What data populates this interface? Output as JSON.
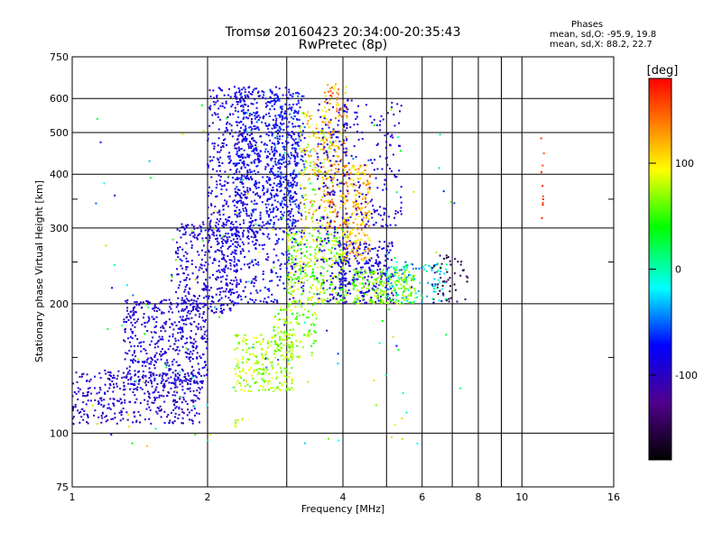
{
  "chart_data": {
    "type": "scatter",
    "title": "Tromsø 20160423 20:34:00-20:35:43",
    "subtitle": "RwPretec (8p)",
    "xlabel": "Frequency [MHz]",
    "ylabel": "Stationary phase Virtual Height [km]",
    "x_scale": "log",
    "y_scale": "log",
    "xlim": [
      1,
      16
    ],
    "ylim": [
      75,
      750
    ],
    "x_ticks": [
      1,
      2,
      4,
      6,
      8,
      10,
      16
    ],
    "x_tick_labels": [
      "1",
      "2",
      "4",
      "6",
      "8",
      "10",
      "16"
    ],
    "y_ticks": [
      75,
      100,
      200,
      300,
      400,
      500,
      600,
      750
    ],
    "y_tick_labels": [
      "75",
      "100",
      "200",
      "300",
      "400",
      "500",
      "600",
      "750"
    ],
    "grid": true,
    "colorbar": {
      "label": "[deg]",
      "range": [
        -180,
        180
      ],
      "ticks": [
        100,
        0,
        -100
      ],
      "tick_labels": [
        "100",
        "0",
        "-100"
      ]
    },
    "stats": {
      "heading": "Phases",
      "line1": "mean, sd,O: -95.9, 19.8",
      "line2": "mean, sd,X:  88.2, 22.7"
    },
    "clusters": [
      {
        "f": [
          1.0,
          1.95
        ],
        "h": [
          105,
          140
        ],
        "n": 380,
        "phase": [
          -115,
          -85
        ]
      },
      {
        "f": [
          1.3,
          2.0
        ],
        "h": [
          130,
          205
        ],
        "n": 480,
        "phase": [
          -112,
          -80
        ]
      },
      {
        "f": [
          1.7,
          2.35
        ],
        "h": [
          190,
          310
        ],
        "n": 300,
        "phase": [
          -110,
          -80
        ]
      },
      {
        "f": [
          2.0,
          2.6
        ],
        "h": [
          280,
          640
        ],
        "n": 380,
        "phase": [
          -110,
          -75
        ]
      },
      {
        "f": [
          2.3,
          3.2
        ],
        "h": [
          300,
          640
        ],
        "n": 520,
        "phase": [
          -108,
          -60
        ]
      },
      {
        "f": [
          2.7,
          3.3
        ],
        "h": [
          320,
          620
        ],
        "n": 260,
        "phase": [
          -100,
          -50
        ]
      },
      {
        "f": [
          2.1,
          3.3
        ],
        "h": [
          200,
          300
        ],
        "n": 260,
        "phase": [
          -110,
          -70
        ]
      },
      {
        "f": [
          2.3,
          3.1
        ],
        "h": [
          125,
          170
        ],
        "n": 220,
        "phase": [
          55,
          105
        ]
      },
      {
        "f": [
          2.8,
          3.5
        ],
        "h": [
          150,
          200
        ],
        "n": 120,
        "phase": [
          40,
          100
        ]
      },
      {
        "f": [
          3.0,
          4.1
        ],
        "h": [
          200,
          300
        ],
        "n": 320,
        "phase": [
          30,
          110
        ]
      },
      {
        "f": [
          3.2,
          3.8
        ],
        "h": [
          300,
          560
        ],
        "n": 160,
        "phase": [
          60,
          140
        ]
      },
      {
        "f": [
          3.6,
          4.1
        ],
        "h": [
          300,
          650
        ],
        "n": 180,
        "phase": [
          90,
          160
        ]
      },
      {
        "f": [
          3.5,
          4.1
        ],
        "h": [
          200,
          600
        ],
        "n": 200,
        "phase": [
          -110,
          -80
        ]
      },
      {
        "f": [
          3.9,
          5.2
        ],
        "h": [
          200,
          280
        ],
        "n": 260,
        "phase": [
          -110,
          -70
        ]
      },
      {
        "f": [
          4.0,
          4.6
        ],
        "h": [
          250,
          420
        ],
        "n": 200,
        "phase": [
          95,
          145
        ]
      },
      {
        "f": [
          4.2,
          5.8
        ],
        "h": [
          200,
          240
        ],
        "n": 220,
        "phase": [
          40,
          95
        ]
      },
      {
        "f": [
          4.0,
          5.4
        ],
        "h": [
          300,
          600
        ],
        "n": 150,
        "phase": [
          -110,
          -80
        ]
      },
      {
        "f": [
          5.0,
          6.8
        ],
        "h": [
          200,
          250
        ],
        "n": 110,
        "phase": [
          -60,
          20
        ]
      },
      {
        "f": [
          6.3,
          7.6
        ],
        "h": [
          200,
          260
        ],
        "n": 50,
        "phase": [
          -170,
          -120
        ]
      },
      {
        "f": [
          1.1,
          7.5
        ],
        "h": [
          90,
          600
        ],
        "n": 160,
        "phase": [
          -110,
          120
        ]
      },
      {
        "f": [
          11.0,
          11.2
        ],
        "h": [
          280,
          520
        ],
        "n": 10,
        "phase": [
          150,
          175
        ]
      },
      {
        "f": [
          2.3,
          2.4
        ],
        "h": [
          103,
          108
        ],
        "n": 8,
        "phase": [
          70,
          100
        ]
      }
    ]
  }
}
